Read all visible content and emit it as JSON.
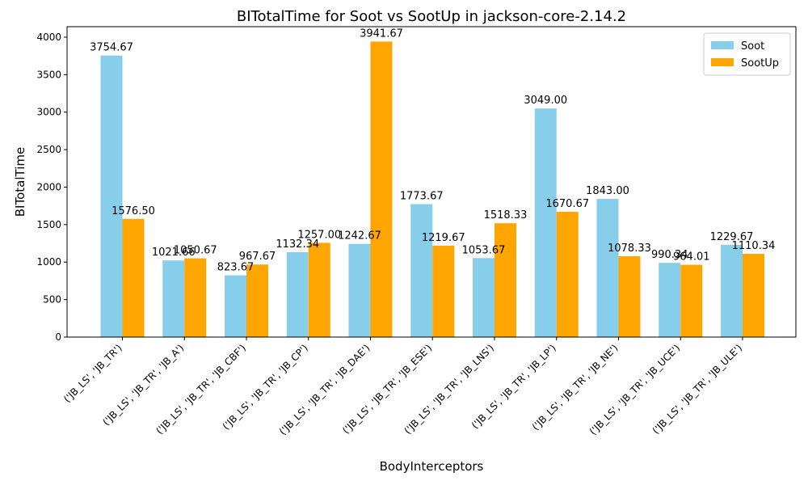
{
  "chart_data": {
    "type": "bar",
    "title": "BITotalTime for Soot vs SootUp in jackson-core-2.14.2",
    "xlabel": "BodyInterceptors",
    "ylabel": "BITotalTime",
    "ylim": [
      0,
      4140
    ],
    "yticks": [
      0,
      500,
      1000,
      1500,
      2000,
      2500,
      3000,
      3500,
      4000
    ],
    "legend_position": "upper-right",
    "categories": [
      "('JB_LS', 'JB_TR')",
      "('JB_LS', 'JB_TR', 'JB_A')",
      "('JB_LS', 'JB_TR', 'JB_CBF')",
      "('JB_LS', 'JB_TR', 'JB_CP')",
      "('JB_LS', 'JB_TR', 'JB_DAE')",
      "('JB_LS', 'JB_TR', 'JB_ESE')",
      "('JB_LS', 'JB_TR', 'JB_LNS')",
      "('JB_LS', 'JB_TR', 'JB_LP')",
      "('JB_LS', 'JB_TR', 'JB_NE')",
      "('JB_LS', 'JB_TR', 'JB_UCE')",
      "('JB_LS', 'JB_TR', 'JB_ULE')"
    ],
    "series": [
      {
        "name": "Soot",
        "color": "#87ceeb",
        "values": [
          3754.67,
          1021.66,
          823.67,
          1132.34,
          1242.67,
          1773.67,
          1053.67,
          3049.0,
          1843.0,
          990.34,
          1229.67
        ],
        "labels": [
          "3754.67",
          "1021.66",
          "823.67",
          "1132.34",
          "1242.67",
          "1773.67",
          "1053.67",
          "3049.00",
          "1843.00",
          "990.34",
          "1229.67"
        ]
      },
      {
        "name": "SootUp",
        "color": "#ffa500",
        "values": [
          1576.5,
          1050.67,
          967.67,
          1257.0,
          3941.67,
          1219.67,
          1518.33,
          1670.67,
          1078.33,
          964.01,
          1110.34
        ],
        "labels": [
          "1576.50",
          "1050.67",
          "967.67",
          "1257.00",
          "3941.67",
          "1219.67",
          "1518.33",
          "1670.67",
          "1078.33",
          "964.01",
          "1110.34"
        ]
      }
    ]
  }
}
